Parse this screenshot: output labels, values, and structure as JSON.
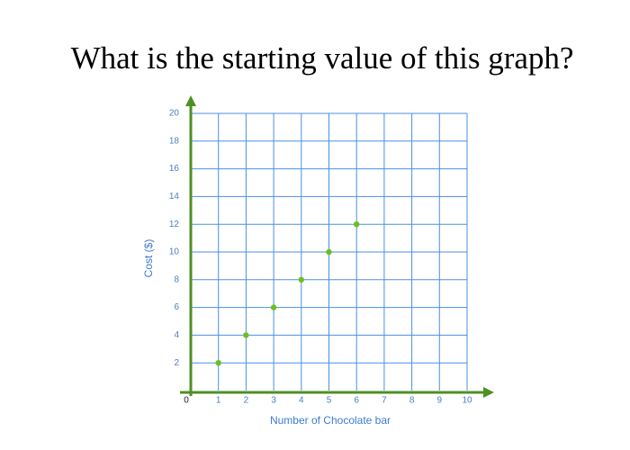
{
  "chart_data": {
    "type": "scatter",
    "title": "What is the starting value of this graph?",
    "x_label": "Number of Chocolate bar",
    "y_label": "Cost ($)",
    "x": [
      1,
      2,
      3,
      4,
      5,
      6
    ],
    "values": [
      2,
      4,
      6,
      8,
      10,
      12
    ],
    "color": "#6cbf1e",
    "xlim": [
      0,
      10
    ],
    "ylim": [
      0,
      20
    ],
    "xticks": [
      0,
      1,
      2,
      3,
      4,
      5,
      6,
      7,
      8,
      9,
      10
    ],
    "yticks": [
      2,
      4,
      6,
      8,
      10,
      12,
      14,
      16,
      18,
      20
    ],
    "grid": true,
    "grid_color": "#4a90e2",
    "axis_color": "#4f8f23"
  }
}
